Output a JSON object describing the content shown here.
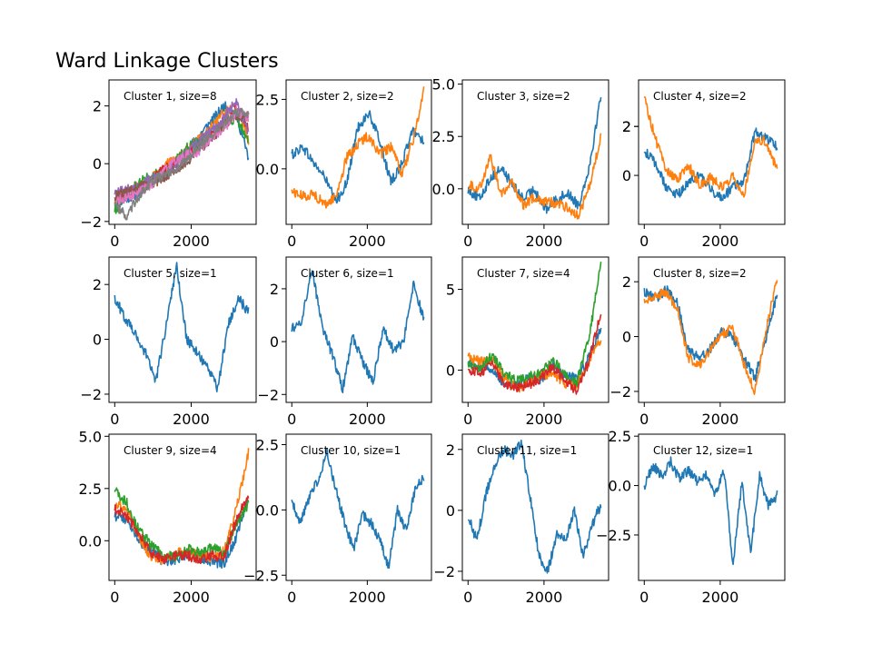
{
  "figure": {
    "title": "Ward Linkage Clusters"
  },
  "colors": [
    "#1f77b4",
    "#ff7f0e",
    "#2ca02c",
    "#d62728",
    "#9467bd",
    "#8c564b",
    "#e377c2",
    "#7f7f7f"
  ],
  "chart_data": [
    {
      "type": "line",
      "title": "",
      "annotation": "Cluster 1, size=8",
      "xlim": [
        -150,
        3700
      ],
      "ylim": [
        -2.1,
        2.9
      ],
      "xticks": [
        0,
        2000
      ],
      "yticks": [
        -2,
        0,
        2
      ],
      "n_series": 8,
      "series": [
        {
          "values": [
            -1.5,
            -1.2,
            -1.0,
            -0.6,
            -0.3,
            0.1,
            0.5,
            1.0,
            1.5,
            2.0,
            1.7,
            0.2
          ]
        },
        {
          "values": [
            -1.3,
            -1.0,
            -0.7,
            -0.5,
            -0.1,
            0.2,
            0.5,
            0.9,
            1.3,
            1.8,
            2.0,
            0.8
          ]
        },
        {
          "values": [
            -1.6,
            -1.1,
            -0.6,
            -0.4,
            -0.3,
            0.1,
            0.6,
            0.8,
            1.1,
            1.4,
            1.6,
            0.7
          ]
        },
        {
          "values": [
            -1.2,
            -1.0,
            -0.9,
            -0.6,
            -0.2,
            0.0,
            0.3,
            0.6,
            1.0,
            1.5,
            1.9,
            1.3
          ]
        },
        {
          "values": [
            -1.0,
            -0.9,
            -0.8,
            -0.5,
            -0.4,
            0.0,
            0.4,
            0.8,
            1.2,
            1.6,
            2.2,
            1.0
          ]
        },
        {
          "values": [
            -1.1,
            -1.0,
            -0.8,
            -0.7,
            -0.5,
            -0.2,
            0.1,
            0.5,
            0.9,
            1.3,
            1.7,
            1.5
          ]
        },
        {
          "values": [
            -1.3,
            -1.2,
            -1.0,
            -0.7,
            -0.3,
            0.1,
            0.3,
            0.4,
            0.9,
            1.2,
            1.8,
            1.6
          ]
        },
        {
          "values": [
            -1.4,
            -1.8,
            -1.1,
            -0.6,
            -0.4,
            -0.2,
            0.2,
            0.6,
            1.0,
            1.4,
            1.8,
            1.7
          ]
        }
      ]
    },
    {
      "type": "line",
      "title": "",
      "annotation": "Cluster 2, size=2",
      "xlim": [
        -150,
        3700
      ],
      "ylim": [
        -2.0,
        3.2
      ],
      "xticks": [
        0,
        2000
      ],
      "yticks": [
        0.0,
        2.5
      ],
      "n_series": 2,
      "series": [
        {
          "values": [
            0.5,
            0.8,
            0.2,
            -0.3,
            -1.2,
            -0.5,
            1.5,
            2.0,
            1.0,
            -0.5,
            0.2,
            1.4,
            1.0
          ]
        },
        {
          "values": [
            -0.8,
            -1.0,
            -0.9,
            -1.3,
            -1.0,
            0.4,
            0.9,
            1.2,
            0.5,
            0.8,
            -0.2,
            1.0,
            2.8
          ]
        }
      ]
    },
    {
      "type": "line",
      "title": "",
      "annotation": "Cluster 3, size=2",
      "xlim": [
        -150,
        3700
      ],
      "ylim": [
        -1.7,
        5.2
      ],
      "xticks": [
        0,
        2000
      ],
      "yticks": [
        0.0,
        2.5,
        5.0
      ],
      "n_series": 2,
      "series": [
        {
          "values": [
            0.0,
            -0.5,
            0.5,
            1.0,
            0.2,
            -0.5,
            0.0,
            -1.0,
            -0.5,
            -0.2,
            -0.8,
            1.2,
            4.5
          ]
        },
        {
          "values": [
            0.2,
            0.0,
            1.5,
            -0.2,
            0.3,
            -0.8,
            -0.4,
            -0.6,
            -0.7,
            -0.9,
            -1.3,
            0.2,
            2.5
          ]
        }
      ]
    },
    {
      "type": "line",
      "title": "",
      "annotation": "Cluster 4, size=2",
      "xlim": [
        -150,
        3700
      ],
      "ylim": [
        -2.0,
        3.9
      ],
      "xticks": [
        0,
        2000
      ],
      "yticks": [
        2,
        0,
        2
      ],
      "n_series": 2,
      "series": [
        {
          "values": [
            1.0,
            0.5,
            -0.5,
            -0.8,
            -0.3,
            0.0,
            -0.6,
            -0.9,
            -0.5,
            -0.2,
            1.8,
            1.5,
            1.2
          ]
        },
        {
          "values": [
            3.2,
            1.5,
            0.2,
            -0.2,
            0.4,
            -0.4,
            -0.1,
            -0.5,
            0.0,
            -0.8,
            1.5,
            1.4,
            0.2
          ]
        }
      ]
    },
    {
      "type": "line",
      "title": "",
      "annotation": "Cluster 5, size=1",
      "xlim": [
        -150,
        3700
      ],
      "ylim": [
        -2.3,
        3.0
      ],
      "xticks": [
        0,
        2000
      ],
      "yticks": [
        -2,
        0,
        2
      ],
      "n_series": 1,
      "series": [
        {
          "values": [
            1.5,
            0.8,
            0.2,
            -0.5,
            -1.5,
            0.5,
            2.7,
            0.0,
            -0.5,
            -1.0,
            -1.8,
            0.5,
            1.5,
            1.0
          ]
        }
      ]
    },
    {
      "type": "line",
      "title": "",
      "annotation": "Cluster 6, size=1",
      "xlim": [
        -150,
        3700
      ],
      "ylim": [
        -2.3,
        3.2
      ],
      "xticks": [
        0,
        2000
      ],
      "yticks": [
        -2,
        0,
        2
      ],
      "n_series": 1,
      "series": [
        {
          "values": [
            0.5,
            0.8,
            2.8,
            0.5,
            -0.5,
            -1.8,
            0.2,
            -0.8,
            -1.5,
            0.5,
            -0.3,
            0.0,
            2.2,
            0.8
          ]
        }
      ]
    },
    {
      "type": "line",
      "title": "",
      "annotation": "Cluster 7, size=4",
      "xlim": [
        -150,
        3700
      ],
      "ylim": [
        -2.0,
        7.0
      ],
      "xticks": [
        0,
        2000
      ],
      "yticks": [
        0,
        5
      ],
      "n_series": 4,
      "series": [
        {
          "values": [
            0.5,
            0.2,
            0.0,
            -0.8,
            -1.0,
            -0.5,
            -0.6,
            0.3,
            -0.4,
            -0.5,
            0.8,
            2.5
          ]
        },
        {
          "values": [
            0.8,
            0.5,
            0.6,
            -0.5,
            -1.2,
            -0.8,
            -0.3,
            -0.2,
            -0.8,
            -0.9,
            0.5,
            2.0
          ]
        },
        {
          "values": [
            0.4,
            0.0,
            1.0,
            -0.2,
            -0.7,
            -0.4,
            -0.2,
            0.6,
            -0.2,
            -0.8,
            2.0,
            6.5
          ]
        },
        {
          "values": [
            0.0,
            -0.2,
            0.5,
            -0.8,
            -1.1,
            -0.9,
            -0.5,
            0.2,
            -0.6,
            -1.3,
            0.5,
            3.5
          ]
        }
      ]
    },
    {
      "type": "line",
      "title": "",
      "annotation": "Cluster 8, size=2",
      "xlim": [
        -150,
        3700
      ],
      "ylim": [
        -2.4,
        2.9
      ],
      "xticks": [
        0,
        2000
      ],
      "yticks": [
        -2,
        0,
        2
      ],
      "n_series": 2,
      "series": [
        {
          "values": [
            1.6,
            1.4,
            1.7,
            1.2,
            -0.5,
            -0.8,
            -0.4,
            0.2,
            0.0,
            -0.8,
            -1.5,
            0.0,
            1.5
          ]
        },
        {
          "values": [
            1.2,
            1.5,
            1.6,
            1.0,
            -0.8,
            -1.0,
            -0.5,
            0.1,
            0.3,
            -1.0,
            -2.0,
            0.2,
            2.2
          ]
        }
      ]
    },
    {
      "type": "line",
      "title": "",
      "annotation": "Cluster 9, size=4",
      "xlim": [
        -150,
        3700
      ],
      "ylim": [
        -1.9,
        5.1
      ],
      "xticks": [
        0,
        2000
      ],
      "yticks": [
        0.0,
        2.5,
        5.0
      ],
      "n_series": 4,
      "series": [
        {
          "values": [
            1.2,
            1.0,
            0.0,
            -0.5,
            -1.0,
            -0.9,
            -0.6,
            -0.8,
            -1.0,
            -1.1,
            0.2,
            2.0
          ]
        },
        {
          "values": [
            1.8,
            1.5,
            0.2,
            -0.8,
            -0.9,
            -0.6,
            -0.5,
            -0.7,
            -0.8,
            -0.5,
            1.5,
            4.2
          ]
        },
        {
          "values": [
            2.4,
            1.8,
            0.5,
            -0.2,
            -0.7,
            -0.8,
            -0.4,
            -0.6,
            -0.3,
            -0.6,
            0.8,
            1.8
          ]
        },
        {
          "values": [
            1.5,
            1.2,
            0.3,
            -0.6,
            -0.9,
            -0.7,
            -0.7,
            -0.9,
            -0.7,
            -0.8,
            1.0,
            2.2
          ]
        }
      ]
    },
    {
      "type": "line",
      "title": "",
      "annotation": "Cluster 10, size=1",
      "xlim": [
        -150,
        3700
      ],
      "ylim": [
        -2.7,
        2.9
      ],
      "xticks": [
        0,
        2000
      ],
      "yticks": [
        2.5,
        0.0,
        -2.5
      ],
      "n_series": 1,
      "series": [
        {
          "values": [
            0.3,
            -0.5,
            0.5,
            1.2,
            2.2,
            0.8,
            -0.5,
            -1.5,
            -0.2,
            -0.5,
            -1.2,
            -2.2,
            0.0,
            -0.8,
            0.8,
            1.2
          ]
        }
      ]
    },
    {
      "type": "line",
      "title": "",
      "annotation": "Cluster 11, size=1",
      "xlim": [
        -150,
        3700
      ],
      "ylim": [
        -2.3,
        2.5
      ],
      "xticks": [
        0,
        2000
      ],
      "yticks": [
        2,
        0,
        -2
      ],
      "n_series": 1,
      "series": [
        {
          "values": [
            -0.2,
            -1.0,
            0.5,
            1.5,
            2.0,
            1.8,
            2.2,
            0.5,
            -1.5,
            -2.0,
            -0.8,
            -1.0,
            0.0,
            -1.5,
            -0.5,
            0.2
          ]
        }
      ]
    },
    {
      "type": "line",
      "title": "",
      "annotation": "Cluster 12, size=1",
      "xlim": [
        -150,
        3700
      ],
      "ylim": [
        -4.8,
        2.6
      ],
      "xticks": [
        0,
        2000
      ],
      "yticks": [
        2.5,
        0.0,
        -2.5
      ],
      "n_series": 1,
      "series": [
        {
          "values": [
            0.0,
            1.0,
            0.5,
            1.2,
            0.3,
            0.8,
            0.2,
            0.5,
            -0.5,
            0.8,
            -4.0,
            0.2,
            -3.5,
            0.5,
            -1.0,
            -0.5
          ]
        }
      ]
    }
  ]
}
